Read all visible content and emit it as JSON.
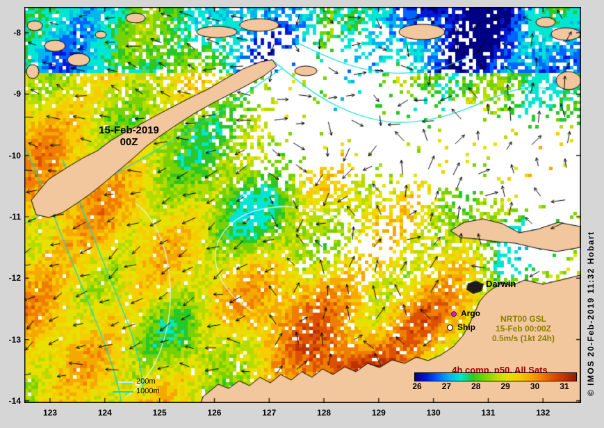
{
  "map_labels": {
    "date_line1": "15-Feb-2019",
    "date_line2": "00Z",
    "city": "Darwin"
  },
  "axes": {
    "lat_ticks": [
      "-8",
      "-9",
      "-10",
      "-11",
      "-12",
      "-13",
      "-14"
    ],
    "lon_ticks": [
      "123",
      "124",
      "125",
      "126",
      "127",
      "128",
      "129",
      "130",
      "131",
      "132"
    ]
  },
  "legend": {
    "argo": "Argo",
    "ship": "Ship",
    "product": [
      "NRT00 GSL",
      "15-Feb 00:00Z",
      "0.5m/s (1kt 24h)"
    ],
    "composite": "4h comp, p50, All Sats",
    "isobath_200": "200m",
    "isobath_1000": "1000m"
  },
  "colorbar": {
    "tick_labels": [
      "26",
      "27",
      "28",
      "29",
      "30",
      "31"
    ],
    "gradient": [
      "#000085",
      "#0018d8",
      "#0064ff",
      "#00b4f0",
      "#00e6d2",
      "#28c828",
      "#78d200",
      "#b4dc00",
      "#e6e100",
      "#f5cd00",
      "#f5a800",
      "#ef7d00",
      "#dc5000",
      "#be3200",
      "#8c1e00"
    ]
  },
  "copyright": "© IMOS 20-Feb-2019 11:32 Hobart",
  "colors": {
    "background": "#d6d6d6",
    "land": "#f3c79d",
    "sea_nodata": "#ffffff",
    "contour": "#00dcdc",
    "contour_light": "#b4f0f0",
    "argo_marker": "#ff00ff",
    "product_text": "#8b8000",
    "composite_text": "#a00000"
  }
}
